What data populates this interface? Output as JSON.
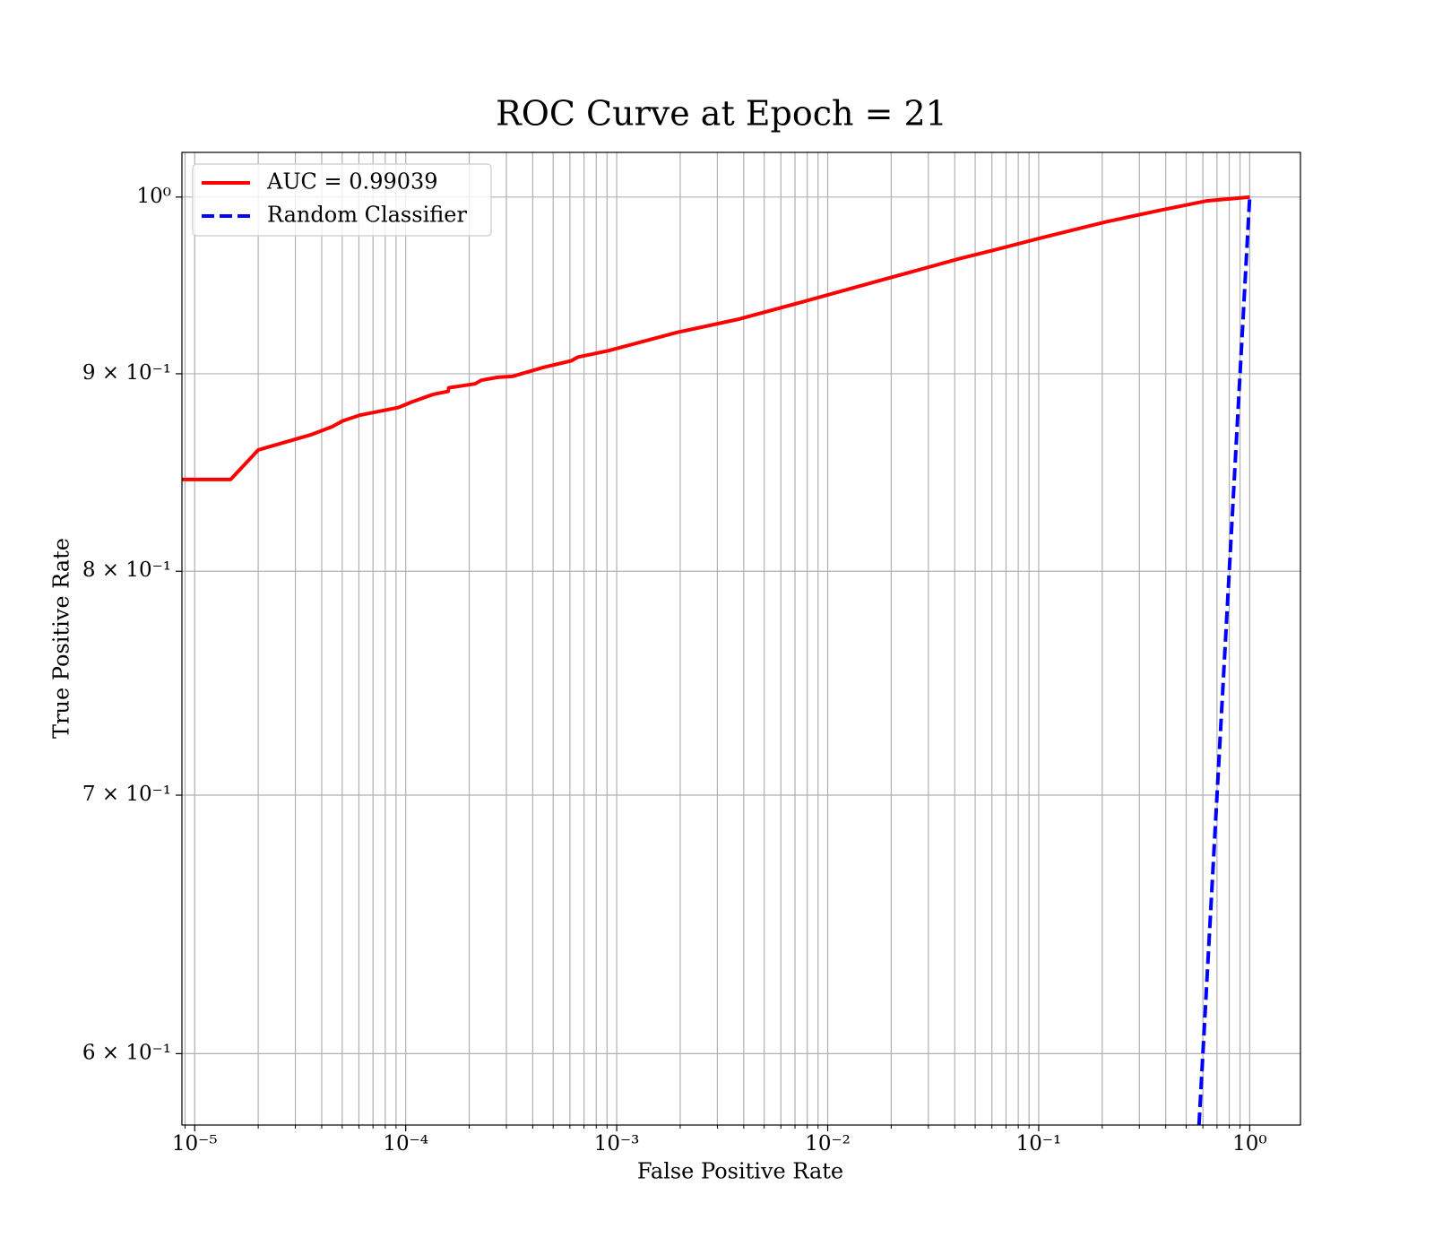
{
  "chart_data": {
    "type": "line",
    "title": "ROC Curve at Epoch = 21",
    "xlabel": "False Positive Rate",
    "ylabel": "True Positive Rate",
    "xscale": "log",
    "yscale": "log",
    "grid": true,
    "legend": "upper left",
    "xlim": [
      8.7e-06,
      1.74
    ],
    "ylim": [
      0.575,
      1.027
    ],
    "xticks": [
      {
        "value": 1e-05,
        "label": "10⁻⁵"
      },
      {
        "value": 0.0001,
        "label": "10⁻⁴"
      },
      {
        "value": 0.001,
        "label": "10⁻³"
      },
      {
        "value": 0.01,
        "label": "10⁻²"
      },
      {
        "value": 0.1,
        "label": "10⁻¹"
      },
      {
        "value": 1,
        "label": "10⁰"
      }
    ],
    "xticks_minor": [
      9e-06,
      2e-05,
      3e-05,
      4e-05,
      5e-05,
      6e-05,
      7e-05,
      8e-05,
      9e-05,
      0.0002,
      0.0003,
      0.0004,
      0.0005,
      0.0006,
      0.0007,
      0.0008,
      0.0009,
      0.002,
      0.003,
      0.004,
      0.005,
      0.006,
      0.007,
      0.008,
      0.009,
      0.02,
      0.03,
      0.04,
      0.05,
      0.06,
      0.07,
      0.08,
      0.09,
      0.2,
      0.3,
      0.4,
      0.5,
      0.6,
      0.7,
      0.8,
      0.9
    ],
    "yticks": [
      {
        "value": 1,
        "label": "10⁰"
      },
      {
        "value": 0.9,
        "label": "9 × 10⁻¹"
      },
      {
        "value": 0.8,
        "label": "8 × 10⁻¹"
      },
      {
        "value": 0.7,
        "label": "7 × 10⁻¹"
      },
      {
        "value": 0.6,
        "label": "6 × 10⁻¹"
      }
    ],
    "series": [
      {
        "name": "AUC = 0.99039",
        "color": "#ff0000",
        "style": "solid",
        "x": [
          8.7e-06,
          1.48e-05,
          2e-05,
          3.59e-05,
          4.48e-05,
          5.05e-05,
          6.05e-05,
          9.2e-05,
          0.000107,
          0.000135,
          0.000159,
          0.00016,
          0.000213,
          0.000228,
          0.000273,
          0.000321,
          0.000452,
          0.00061,
          0.000656,
          0.00091,
          0.00194,
          0.00373,
          0.00755,
          0.0169,
          0.0417,
          0.0624,
          0.103,
          0.208,
          0.381,
          0.63,
          1.0
        ],
        "values": [
          0.845,
          0.845,
          0.86,
          0.868,
          0.872,
          0.8751,
          0.878,
          0.882,
          0.885,
          0.889,
          0.8906,
          0.8925,
          0.8946,
          0.8965,
          0.8981,
          0.8986,
          0.9035,
          0.907,
          0.909,
          0.9124,
          0.9225,
          0.9296,
          0.9393,
          0.9508,
          0.9638,
          0.9691,
          0.976,
          0.9853,
          0.9923,
          0.9978,
          1.0
        ]
      },
      {
        "name": "Random Classifier",
        "color": "#0000ff",
        "style": "dashed",
        "x": [
          0.575,
          1.0
        ],
        "values": [
          0.575,
          1.0
        ]
      }
    ]
  }
}
